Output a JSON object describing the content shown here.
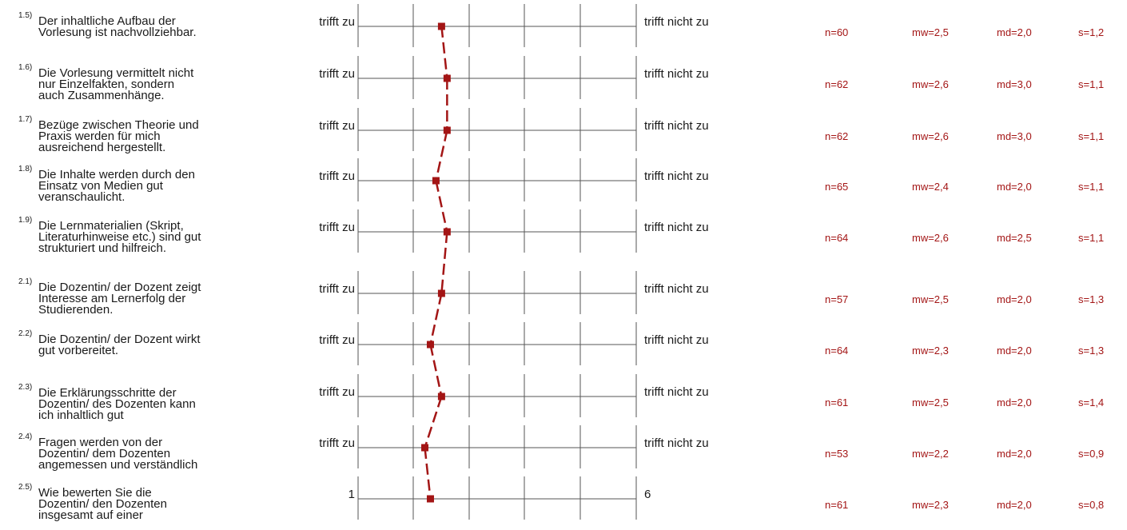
{
  "chart_data": {
    "type": "profile-line",
    "scale_min": 1,
    "scale_max": 6,
    "colors": {
      "line": "#a31515",
      "marker": "#a31515",
      "axis": "#555555",
      "stats": "#a31515"
    },
    "items": [
      {
        "num": "1.5)",
        "text": [
          "Der inhaltliche Aufbau der",
          "Vorlesung ist nachvollziehbar."
        ],
        "left_label": "trifft zu",
        "right_label": "trifft nicht zu",
        "n": "n=60",
        "mw": "mw=2,5",
        "md": "md=2,0",
        "s": "s=1,2",
        "value": 2.5
      },
      {
        "num": "1.6)",
        "text": [
          "Die Vorlesung vermittelt nicht",
          "nur Einzelfakten, sondern",
          "auch Zusammenhänge."
        ],
        "left_label": "trifft zu",
        "right_label": "trifft nicht zu",
        "n": "n=62",
        "mw": "mw=2,6",
        "md": "md=3,0",
        "s": "s=1,1",
        "value": 2.6
      },
      {
        "num": "1.7)",
        "text": [
          "Bezüge zwischen Theorie und",
          "Praxis werden für mich",
          "ausreichend hergestellt."
        ],
        "left_label": "trifft zu",
        "right_label": "trifft nicht zu",
        "n": "n=62",
        "mw": "mw=2,6",
        "md": "md=3,0",
        "s": "s=1,1",
        "value": 2.6
      },
      {
        "num": "1.8)",
        "text": [
          "Die Inhalte werden durch den",
          "Einsatz von Medien gut",
          "veranschaulicht."
        ],
        "left_label": "trifft zu",
        "right_label": "trifft nicht zu",
        "n": "n=65",
        "mw": "mw=2,4",
        "md": "md=2,0",
        "s": "s=1,1",
        "value": 2.4
      },
      {
        "num": "1.9)",
        "text": [
          "Die Lernmaterialien (Skript,",
          "Literaturhinweise etc.) sind gut",
          "strukturiert und hilfreich."
        ],
        "left_label": "trifft zu",
        "right_label": "trifft nicht zu",
        "n": "n=64",
        "mw": "mw=2,6",
        "md": "md=2,5",
        "s": "s=1,1",
        "value": 2.6
      },
      {
        "num": "2.1)",
        "text": [
          "Die Dozentin/ der Dozent zeigt",
          "Interesse am Lernerfolg der",
          "Studierenden."
        ],
        "left_label": "trifft zu",
        "right_label": "trifft nicht zu",
        "n": "n=57",
        "mw": "mw=2,5",
        "md": "md=2,0",
        "s": "s=1,3",
        "value": 2.5
      },
      {
        "num": "2.2)",
        "text": [
          "Die Dozentin/ der Dozent wirkt",
          "gut vorbereitet."
        ],
        "left_label": "trifft zu",
        "right_label": "trifft nicht zu",
        "n": "n=64",
        "mw": "mw=2,3",
        "md": "md=2,0",
        "s": "s=1,3",
        "value": 2.3
      },
      {
        "num": "2.3)",
        "text": [
          "Die Erklärungsschritte der",
          "Dozentin/ des Dozenten kann",
          "ich inhaltlich gut"
        ],
        "left_label": "trifft zu",
        "right_label": "trifft nicht zu",
        "n": "n=61",
        "mw": "mw=2,5",
        "md": "md=2,0",
        "s": "s=1,4",
        "value": 2.5
      },
      {
        "num": "2.4)",
        "text": [
          "Fragen werden von der",
          "Dozentin/ dem Dozenten",
          "angemessen und verständlich"
        ],
        "left_label": "trifft zu",
        "right_label": "trifft nicht zu",
        "n": "n=53",
        "mw": "mw=2,2",
        "md": "md=2,0",
        "s": "s=0,9",
        "value": 2.2
      },
      {
        "num": "2.5)",
        "text": [
          "Wie bewerten Sie die",
          "Dozentin/ den Dozenten",
          "insgesamt auf einer"
        ],
        "left_label": "1",
        "right_label": "6",
        "n": "n=61",
        "mw": "mw=2,3",
        "md": "md=2,0",
        "s": "s=0,8",
        "value": 2.3
      }
    ]
  }
}
